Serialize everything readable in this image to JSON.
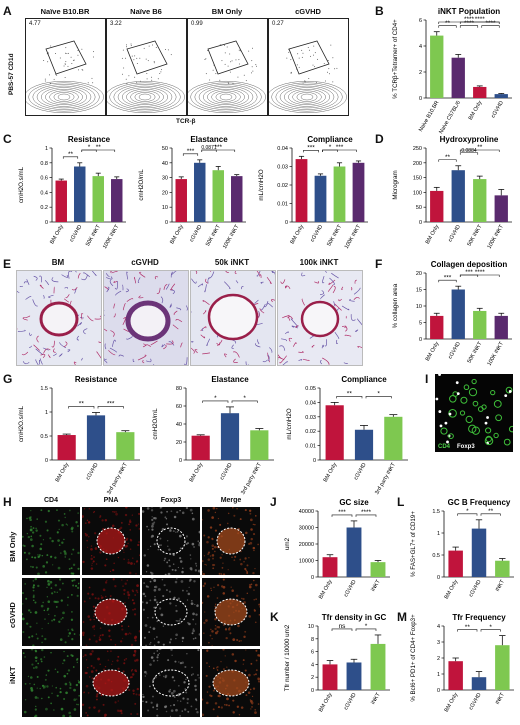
{
  "panels": {
    "A": {
      "letter": "A",
      "ylabel": "PBS-57 CD1d",
      "xlabel": "TCR-β",
      "plots": [
        {
          "title": "Naïve B10.BR",
          "pct": "4.77"
        },
        {
          "title": "Naïve B6",
          "pct": "3.22"
        },
        {
          "title": "BM Only",
          "pct": "0.99"
        },
        {
          "title": "cGVHD",
          "pct": "0.27"
        }
      ]
    },
    "B": {
      "letter": "B"
    },
    "C": {
      "letter": "C"
    },
    "D": {
      "letter": "D"
    },
    "E": {
      "letter": "E",
      "images": [
        "BM",
        "cGVHD",
        "50k iNKT",
        "100k iNKT"
      ]
    },
    "F": {
      "letter": "F"
    },
    "G": {
      "letter": "G"
    },
    "H": {
      "letter": "H",
      "columns": [
        "CD4",
        "PNA",
        "Foxp3",
        "Merge"
      ],
      "rows": [
        "BM Only",
        "cGVHD",
        "iNKT"
      ]
    },
    "I": {
      "letter": "I",
      "cd4": "CD4",
      "foxp3": "Foxp3"
    },
    "J": {
      "letter": "J"
    },
    "K": {
      "letter": "K"
    },
    "L": {
      "letter": "L"
    },
    "M": {
      "letter": "M"
    }
  },
  "colors": {
    "red": "#c0143c",
    "blue": "#2e4f8a",
    "green": "#7ec850",
    "purple": "#5a2a6e"
  },
  "chart_data": [
    {
      "id": "B",
      "type": "bar",
      "title": "iNKT Population",
      "ylabel": "% TCRβ+Tetramer+ of CD4+",
      "categories": [
        "Naive B10.BR",
        "Naive C57BL/6",
        "BM Only",
        "cGVHD"
      ],
      "values": [
        4.8,
        3.1,
        0.85,
        0.3
      ],
      "errors": [
        0.3,
        0.25,
        0.08,
        0.05
      ],
      "ylim": [
        0,
        6
      ],
      "yticks": [
        0,
        2,
        4,
        6
      ],
      "colors": [
        "#7ec850",
        "#5a2a6e",
        "#c0143c",
        "#2e4f8a"
      ],
      "sig": [
        {
          "a": 0,
          "b": 1,
          "label": "**",
          "lvl": 0
        },
        {
          "a": 1,
          "b": 2,
          "label": "****",
          "lvl": 0
        },
        {
          "a": 2,
          "b": 3,
          "label": "****",
          "lvl": 0
        },
        {
          "a": 1,
          "b": 3,
          "label": "****",
          "lvl": 1
        },
        {
          "a": 0,
          "b": 3,
          "label": "****",
          "lvl": 2
        }
      ]
    },
    {
      "id": "C1",
      "type": "bar",
      "title": "Resistance",
      "ylabel": "cmH2O.s/mL",
      "categories": [
        "BM Only",
        "cGVHD",
        "50K iNKT",
        "100K iNKT"
      ],
      "values": [
        0.56,
        0.75,
        0.62,
        0.58
      ],
      "errors": [
        0.02,
        0.05,
        0.04,
        0.03
      ],
      "ylim": [
        0,
        1.0
      ],
      "yticks": [
        0.0,
        0.2,
        0.4,
        0.6,
        0.8,
        1.0
      ],
      "colors": [
        "#c0143c",
        "#2e4f8a",
        "#7ec850",
        "#5a2a6e"
      ],
      "sig": [
        {
          "a": 0,
          "b": 1,
          "label": "**",
          "lvl": 0
        },
        {
          "a": 1,
          "b": 2,
          "label": "*",
          "lvl": 1
        },
        {
          "a": 1,
          "b": 3,
          "label": "**",
          "lvl": 2
        }
      ]
    },
    {
      "id": "C2",
      "type": "bar",
      "title": "Elastance",
      "ylabel": "cmH2O/mL",
      "categories": [
        "BM Only",
        "cGVHD",
        "50K iNKT",
        "100K iNKT"
      ],
      "values": [
        29,
        40,
        35,
        31
      ],
      "errors": [
        1.5,
        2,
        2.5,
        1
      ],
      "ylim": [
        0,
        50
      ],
      "yticks": [
        0,
        10,
        20,
        30,
        40,
        50
      ],
      "colors": [
        "#c0143c",
        "#2e4f8a",
        "#7ec850",
        "#5a2a6e"
      ],
      "sig": [
        {
          "a": 0,
          "b": 1,
          "label": "***",
          "lvl": 0
        },
        {
          "a": 1,
          "b": 2,
          "label": "0.0871",
          "lvl": 1
        },
        {
          "a": 1,
          "b": 3,
          "label": "***",
          "lvl": 2
        }
      ]
    },
    {
      "id": "C3",
      "type": "bar",
      "title": "Compliance",
      "ylabel": "mL/cmH2O",
      "categories": [
        "BM Only",
        "cGVHD",
        "50K iNKT",
        "100K iNKT"
      ],
      "values": [
        0.034,
        0.025,
        0.03,
        0.032
      ],
      "errors": [
        0.0015,
        0.001,
        0.002,
        0.001
      ],
      "ylim": [
        0,
        0.04
      ],
      "yticks": [
        0.0,
        0.01,
        0.02,
        0.03,
        0.04
      ],
      "colors": [
        "#c0143c",
        "#2e4f8a",
        "#7ec850",
        "#5a2a6e"
      ],
      "sig": [
        {
          "a": 0,
          "b": 1,
          "label": "***",
          "lvl": 0
        },
        {
          "a": 1,
          "b": 2,
          "label": "*",
          "lvl": 1
        },
        {
          "a": 1,
          "b": 3,
          "label": "***",
          "lvl": 2
        }
      ]
    },
    {
      "id": "D",
      "type": "bar",
      "title": "Hydroxyproline",
      "ylabel": "Microgram",
      "categories": [
        "BM Only",
        "cGVHD",
        "50K iNKT",
        "100K iNKT"
      ],
      "values": [
        105,
        175,
        145,
        90
      ],
      "errors": [
        12,
        15,
        10,
        20
      ],
      "ylim": [
        0,
        250
      ],
      "yticks": [
        0,
        50,
        100,
        150,
        200,
        250
      ],
      "colors": [
        "#c0143c",
        "#2e4f8a",
        "#7ec850",
        "#5a2a6e"
      ],
      "sig": [
        {
          "a": 0,
          "b": 1,
          "label": "**",
          "lvl": 0
        },
        {
          "a": 1,
          "b": 2,
          "label": "0.0884",
          "lvl": 1
        },
        {
          "a": 1,
          "b": 3,
          "label": "**",
          "lvl": 2
        }
      ]
    },
    {
      "id": "F",
      "type": "bar",
      "title": "Collagen deposition",
      "ylabel": "% collagen area",
      "categories": [
        "BM Only",
        "cGVHD",
        "50K iNKT",
        "100K iNKT"
      ],
      "values": [
        7,
        15,
        8.5,
        7
      ],
      "errors": [
        0.8,
        1.0,
        0.8,
        0.8
      ],
      "ylim": [
        0,
        20
      ],
      "yticks": [
        0,
        5,
        10,
        15,
        20
      ],
      "colors": [
        "#c0143c",
        "#2e4f8a",
        "#7ec850",
        "#5a2a6e"
      ],
      "sig": [
        {
          "a": 0,
          "b": 1,
          "label": "***",
          "lvl": 0
        },
        {
          "a": 1,
          "b": 2,
          "label": "***",
          "lvl": 1
        },
        {
          "a": 1,
          "b": 3,
          "label": "****",
          "lvl": 2
        }
      ]
    },
    {
      "id": "G1",
      "type": "bar",
      "title": "Resistance",
      "ylabel": "cmH2O.s/mL",
      "categories": [
        "BM Only",
        "cGVHD",
        "3rd party iNKT"
      ],
      "values": [
        0.52,
        0.93,
        0.58
      ],
      "errors": [
        0.02,
        0.06,
        0.03
      ],
      "ylim": [
        0,
        1.5
      ],
      "yticks": [
        0.0,
        0.5,
        1.0,
        1.5
      ],
      "colors": [
        "#c0143c",
        "#2e4f8a",
        "#7ec850"
      ],
      "sig": [
        {
          "a": 0,
          "b": 1,
          "label": "**",
          "lvl": 0
        },
        {
          "a": 1,
          "b": 2,
          "label": "***",
          "lvl": 0
        }
      ]
    },
    {
      "id": "G2",
      "type": "bar",
      "title": "Elastance",
      "ylabel": "cmH2O/mL",
      "categories": [
        "BM Only",
        "cGVHD",
        "3rd party iNKT"
      ],
      "values": [
        27,
        52,
        33
      ],
      "errors": [
        1,
        7,
        2
      ],
      "ylim": [
        0,
        80
      ],
      "yticks": [
        0,
        20,
        40,
        60,
        80
      ],
      "colors": [
        "#c0143c",
        "#2e4f8a",
        "#7ec850"
      ],
      "sig": [
        {
          "a": 0,
          "b": 1,
          "label": "*",
          "lvl": 0
        },
        {
          "a": 1,
          "b": 2,
          "label": "*",
          "lvl": 0
        }
      ]
    },
    {
      "id": "G3",
      "type": "bar",
      "title": "Compliance",
      "ylabel": "mL/cmH2O",
      "categories": [
        "BM Only",
        "cGVHD",
        "3rd party iNKT"
      ],
      "values": [
        0.038,
        0.021,
        0.03
      ],
      "errors": [
        0.002,
        0.003,
        0.0015
      ],
      "ylim": [
        0,
        0.05
      ],
      "yticks": [
        0.0,
        0.01,
        0.02,
        0.03,
        0.04,
        0.05
      ],
      "colors": [
        "#c0143c",
        "#2e4f8a",
        "#7ec850"
      ],
      "sig": [
        {
          "a": 0,
          "b": 1,
          "label": "**",
          "lvl": 0
        },
        {
          "a": 1,
          "b": 2,
          "label": "*",
          "lvl": 0
        }
      ]
    },
    {
      "id": "J",
      "type": "bar",
      "title": "GC size",
      "ylabel": "um2",
      "categories": [
        "BM Only",
        "cGVHD",
        "iNKT"
      ],
      "values": [
        12000,
        30000,
        9000
      ],
      "errors": [
        1500,
        4000,
        1000
      ],
      "ylim": [
        0,
        40000
      ],
      "yticks": [
        0,
        10000,
        20000,
        30000,
        40000
      ],
      "colors": [
        "#c0143c",
        "#2e4f8a",
        "#7ec850"
      ],
      "sig": [
        {
          "a": 0,
          "b": 1,
          "label": "***",
          "lvl": 0
        },
        {
          "a": 1,
          "b": 2,
          "label": "****",
          "lvl": 0
        }
      ]
    },
    {
      "id": "K",
      "type": "bar",
      "title": "Tfr density in GC",
      "ylabel": "Tfr number / 10000 um2",
      "categories": [
        "BM Only",
        "cGVHD",
        "iNKT"
      ],
      "values": [
        4,
        4.3,
        7.2
      ],
      "errors": [
        0.6,
        0.5,
        1.4
      ],
      "ylim": [
        0,
        10
      ],
      "yticks": [
        0,
        2,
        4,
        6,
        8,
        10
      ],
      "colors": [
        "#c0143c",
        "#2e4f8a",
        "#7ec850"
      ],
      "sig": [
        {
          "a": 0,
          "b": 1,
          "label": "ns",
          "lvl": 0
        },
        {
          "a": 1,
          "b": 2,
          "label": "*",
          "lvl": 0
        }
      ]
    },
    {
      "id": "L",
      "type": "bar",
      "title": "GC B Frequency",
      "ylabel": "% FAS+GL7+ of CD19+",
      "categories": [
        "BM Only",
        "cGVHD",
        "iNKT"
      ],
      "values": [
        0.6,
        1.1,
        0.37
      ],
      "errors": [
        0.08,
        0.2,
        0.05
      ],
      "ylim": [
        0,
        1.5
      ],
      "yticks": [
        0.0,
        0.5,
        1.0,
        1.5
      ],
      "colors": [
        "#c0143c",
        "#2e4f8a",
        "#7ec850"
      ],
      "sig": [
        {
          "a": 0,
          "b": 1,
          "label": "*",
          "lvl": 0
        },
        {
          "a": 1,
          "b": 2,
          "label": "**",
          "lvl": 0
        }
      ]
    },
    {
      "id": "M",
      "type": "bar",
      "title": "Tfr Frequency",
      "ylabel": "% Bcl6+ PD1+ of CD4+ Foxp3+",
      "categories": [
        "BM Only",
        "cGVHD",
        "iNKT"
      ],
      "values": [
        1.8,
        0.8,
        2.8
      ],
      "errors": [
        0.2,
        0.35,
        0.6
      ],
      "ylim": [
        0,
        4
      ],
      "yticks": [
        0,
        1,
        2,
        3,
        4
      ],
      "colors": [
        "#c0143c",
        "#2e4f8a",
        "#7ec850"
      ],
      "sig": [
        {
          "a": 0,
          "b": 1,
          "label": "**",
          "lvl": 0
        },
        {
          "a": 1,
          "b": 2,
          "label": "*",
          "lvl": 0
        }
      ]
    }
  ]
}
